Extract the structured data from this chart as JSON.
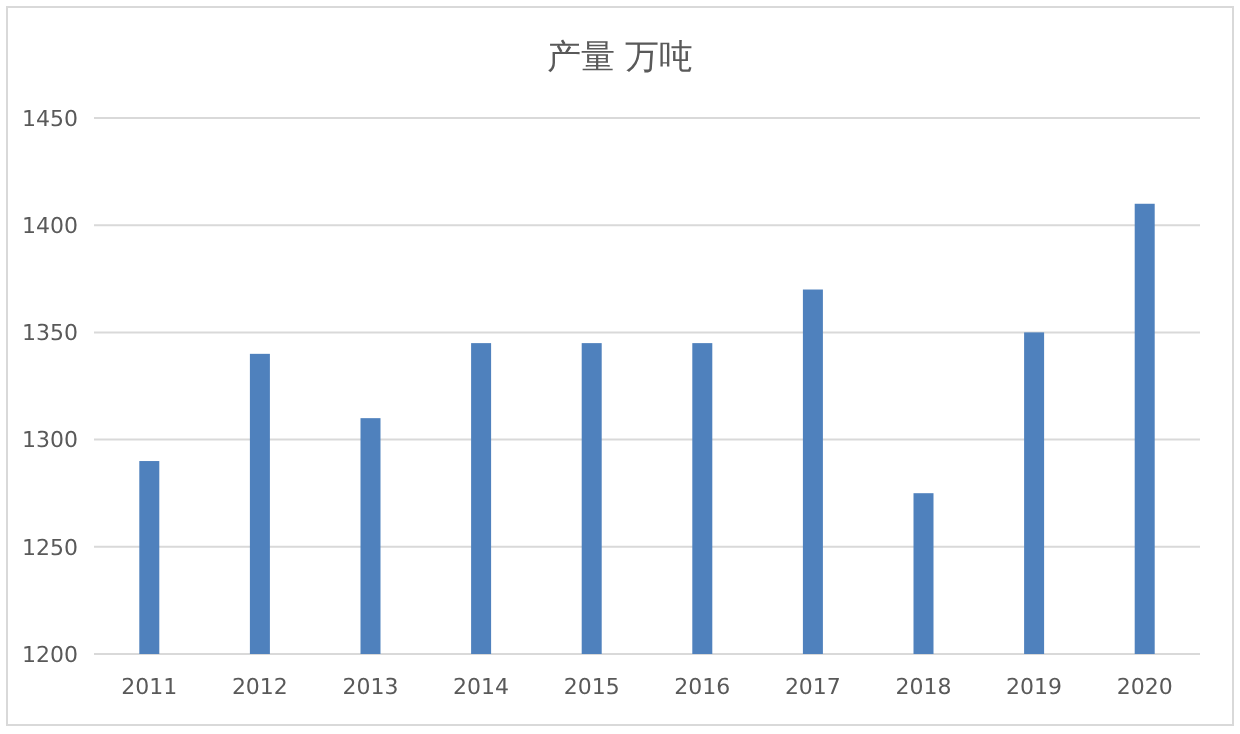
{
  "chart_data": {
    "type": "bar",
    "title": "产量  万吨",
    "categories": [
      "2011",
      "2012",
      "2013",
      "2014",
      "2015",
      "2016",
      "2017",
      "2018",
      "2019",
      "2020"
    ],
    "values": [
      1290,
      1340,
      1310,
      1345,
      1345,
      1345,
      1370,
      1275,
      1350,
      1410
    ],
    "color": "#4f81bd",
    "ylim": [
      1200,
      1450
    ],
    "yticks": [
      1200,
      1250,
      1300,
      1350,
      1400,
      1450
    ],
    "grid": true
  }
}
